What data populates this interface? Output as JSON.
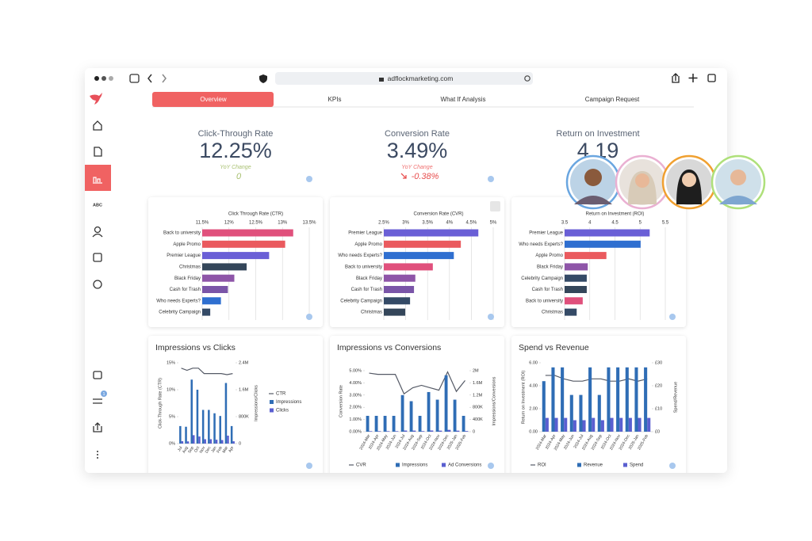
{
  "browser": {
    "url": "adflockmarketing.com"
  },
  "sidebar": {
    "abc": "ABC",
    "badge": "1"
  },
  "tabs": [
    "Overview",
    "KPIs",
    "What If Analysis",
    "Campaign Request"
  ],
  "kpis": [
    {
      "title": "Click-Through Rate",
      "value": "12.25%",
      "change_label": "YoY Change",
      "change": "0"
    },
    {
      "title": "Conversion Rate",
      "value": "3.49%",
      "change_label": "YoY Change",
      "change": "-0.38%"
    },
    {
      "title": "Return on Investment",
      "value": "4.19"
    }
  ],
  "chart_data": [
    {
      "type": "hbar",
      "title": "Click Through Rate (CTR)",
      "categories": [
        "Back to university",
        "Apple Promo",
        "Premier League",
        "Christmas",
        "Black Friday",
        "Cash for Trash",
        "Who needs Experts?",
        "Celebrity Campaign"
      ],
      "values": [
        13.2,
        13.05,
        12.75,
        12.33,
        12.1,
        11.98,
        11.85,
        11.65
      ],
      "colors": [
        "#e0507c",
        "#ea5a5e",
        "#6a5fd6",
        "#34465a",
        "#8e55a8",
        "#7a55a8",
        "#2f6fd0",
        "#344a66"
      ],
      "xlim": [
        11.5,
        13.5
      ],
      "xticks": [
        {
          "value": 11.5,
          "label": "11.5%"
        },
        {
          "value": 12,
          "label": "12%"
        },
        {
          "value": 12.5,
          "label": "12.5%"
        },
        {
          "value": 13,
          "label": "13%"
        },
        {
          "value": 13.5,
          "label": "13.5%"
        }
      ],
      "grid": true
    },
    {
      "type": "hbar",
      "title": "Conversion Rate (CVR)",
      "categories": [
        "Premier League",
        "Apple Promo",
        "Who needs Experts?",
        "Back to university",
        "Black Friday",
        "Cash for Trash",
        "Celebrity Campaign",
        "Christmas"
      ],
      "values": [
        4.66,
        4.26,
        4.1,
        3.62,
        3.22,
        3.19,
        3.1,
        2.99
      ],
      "colors": [
        "#6a5fd6",
        "#ea5a5e",
        "#2f6fd0",
        "#e0507c",
        "#8e55a8",
        "#7a55a8",
        "#344a66",
        "#34465a"
      ],
      "xlim": [
        2.5,
        5
      ],
      "xticks": [
        {
          "value": 2.5,
          "label": "2.5%"
        },
        {
          "value": 3,
          "label": "3%"
        },
        {
          "value": 3.5,
          "label": "3.5%"
        },
        {
          "value": 4,
          "label": "4%"
        },
        {
          "value": 4.5,
          "label": "4.5%"
        },
        {
          "value": 5,
          "label": "5%"
        }
      ],
      "grid": true
    },
    {
      "type": "hbar",
      "title": "Return on Investment (ROI)",
      "categories": [
        "Premier League",
        "Who needs Experts?",
        "Apple Promo",
        "Black Friday",
        "Celebrity Campaign",
        "Cash for Trash",
        "Back to university",
        "Christmas"
      ],
      "values": [
        5.19,
        5.01,
        4.33,
        3.96,
        3.94,
        3.94,
        3.86,
        3.74
      ],
      "colors": [
        "#6a5fd6",
        "#2f6fd0",
        "#ea5a5e",
        "#8e55a8",
        "#344a66",
        "#34465a",
        "#e0507c",
        "#344a66"
      ],
      "xlim": [
        3.5,
        5.5
      ],
      "xticks": [
        3.5,
        4,
        4.5,
        5,
        5.5
      ],
      "grid": true
    },
    {
      "type": "combo",
      "title": "Impressions vs Clicks",
      "ylabel": "Click-Through Rate (CTR)",
      "y2label": "Impressions/Clicks",
      "categories": [
        "Jul",
        "Aug",
        "Sep",
        "Oct",
        "Nov",
        "Dec",
        "Jan",
        "Feb",
        "Mar",
        "Apr"
      ],
      "series": [
        {
          "name": "CTR",
          "type": "line",
          "color": "#555a66",
          "values": [
            14,
            13.6,
            14,
            14,
            13,
            13,
            13,
            13,
            12.8,
            13
          ]
        },
        {
          "name": "Impressions",
          "type": "bar",
          "axis": "y2",
          "color": "#2f6db5",
          "values": [
            520000,
            500000,
            1900000,
            1600000,
            1000000,
            1000000,
            900000,
            820000,
            1800000,
            520000
          ]
        },
        {
          "name": "Clicks",
          "type": "bar",
          "axis": "y2",
          "color": "#5a5fd0",
          "values": [
            70000,
            65000,
            250000,
            210000,
            130000,
            130000,
            115000,
            105000,
            235000,
            68000
          ]
        }
      ],
      "ylim": [
        0,
        15
      ],
      "yticks": [
        {
          "value": 0,
          "label": "0%"
        },
        {
          "value": 5,
          "label": "5%"
        },
        {
          "value": 10,
          "label": "10%"
        },
        {
          "value": 15,
          "label": "15%"
        }
      ],
      "y2lim": [
        0,
        2400000
      ],
      "y2ticks": [
        0,
        {
          "value": 800000,
          "label": "800K"
        },
        {
          "value": 1600000,
          "label": "1.6M"
        },
        {
          "value": 2400000,
          "label": "2.4M"
        }
      ],
      "legend": "right"
    },
    {
      "type": "combo",
      "title": "Impressions vs Conversions",
      "ylabel": "Conversion Rate",
      "y2label": "Impressions/Conversions",
      "categories": [
        "2024-Mar",
        "2024-Apr",
        "2024-May",
        "2024-Jun",
        "2024-Jul",
        "2024-Aug",
        "2024-Sep",
        "2024-Oct",
        "2024-Nov",
        "2024-Dec",
        "2025-Jan",
        "2025-Feb"
      ],
      "series": [
        {
          "name": "CVR",
          "type": "line",
          "color": "#555a66",
          "values": [
            4.8,
            4.7,
            4.7,
            4.7,
            3.1,
            3.6,
            3.8,
            3.6,
            3.4,
            4.9,
            3.3,
            4.2
          ]
        },
        {
          "name": "Impressions",
          "type": "bar",
          "axis": "y2",
          "color": "#2f6db5",
          "values": [
            520000,
            520000,
            520000,
            520000,
            1200000,
            1000000,
            520000,
            1300000,
            1050000,
            1850000,
            1050000,
            520000
          ]
        },
        {
          "name": "Ad Conversions",
          "type": "bar",
          "axis": "y2",
          "color": "#5a5fd0",
          "values": [
            18000,
            18000,
            18000,
            18000,
            38000,
            36000,
            20000,
            40000,
            35000,
            60000,
            34000,
            22000
          ]
        }
      ],
      "ylim": [
        0,
        5
      ],
      "yticks": [
        {
          "value": 0,
          "label": "0.00%"
        },
        {
          "value": 1,
          "label": "1.00%"
        },
        {
          "value": 2,
          "label": "2.00%"
        },
        {
          "value": 3,
          "label": "3.00%"
        },
        {
          "value": 4,
          "label": "4.00%"
        },
        {
          "value": 5,
          "label": "5.00%"
        }
      ],
      "y2lim": [
        0,
        2000000
      ],
      "y2ticks": [
        0,
        {
          "value": 400000,
          "label": "400K"
        },
        {
          "value": 800000,
          "label": "800K"
        },
        {
          "value": 1200000,
          "label": "1.2M"
        },
        {
          "value": 1600000,
          "label": "1.6M"
        },
        {
          "value": 2000000,
          "label": "2M"
        }
      ],
      "legend": "bottom"
    },
    {
      "type": "combo",
      "title": "Spend vs Revenue",
      "ylabel": "Return on Investment (ROI)",
      "y2label": "Spend/Revenue",
      "categories": [
        "2024-Mar",
        "2024-Apr",
        "2024-May",
        "2024-Jun",
        "2024-Jul",
        "2024-Aug",
        "2024-Sep",
        "2024-Oct",
        "2024-Nov",
        "2024-Dec",
        "2025-Jan",
        "2025-Feb"
      ],
      "series": [
        {
          "name": "ROI",
          "type": "line",
          "color": "#555a66",
          "values": [
            4.9,
            4.9,
            4.6,
            4.4,
            4.4,
            4.6,
            4.6,
            4.4,
            4.4,
            4.6,
            4.4,
            4.6
          ]
        },
        {
          "name": "Revenue",
          "type": "bar",
          "axis": "y2",
          "color": "#2f6db5",
          "values": [
            22,
            28,
            28,
            16,
            16,
            28,
            16,
            28,
            28,
            28,
            28,
            28
          ]
        },
        {
          "name": "Spend",
          "type": "bar",
          "axis": "y2",
          "color": "#5a5fd0",
          "values": [
            6,
            6,
            6,
            5,
            5,
            6,
            5,
            6,
            6,
            6,
            6,
            6
          ]
        }
      ],
      "ylim": [
        0,
        6
      ],
      "yticks": [
        {
          "value": 0,
          "label": "0.00"
        },
        {
          "value": 2,
          "label": "2.00"
        },
        {
          "value": 4,
          "label": "4.00"
        },
        {
          "value": 6,
          "label": "6.00"
        }
      ],
      "y2lim": [
        0,
        30
      ],
      "y2ticks": [
        {
          "value": 0,
          "label": "£0"
        },
        {
          "value": 10,
          "label": "£10"
        },
        {
          "value": 20,
          "label": "£20"
        },
        {
          "value": 30,
          "label": "£30"
        }
      ],
      "legend": "bottom"
    }
  ]
}
